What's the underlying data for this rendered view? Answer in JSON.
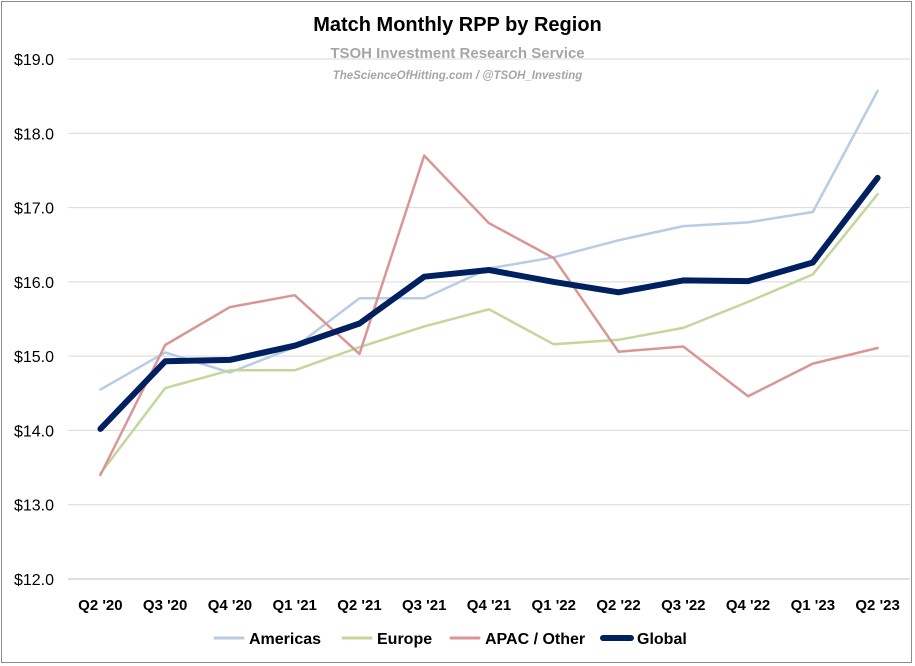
{
  "chart_data": {
    "type": "line",
    "title": "Match Monthly RPP by Region",
    "watermark": "TSOH Investment Research Service",
    "watermark_sub": "TheScienceOfHitting.com / @TSOH_Investing",
    "categories": [
      "Q2 '20",
      "Q3 '20",
      "Q4 '20",
      "Q1 '21",
      "Q2 '21",
      "Q3 '21",
      "Q4 '21",
      "Q1 '22",
      "Q2 '22",
      "Q3 '22",
      "Q4 '22",
      "Q1 '23",
      "Q2 '23"
    ],
    "ylim": [
      12.0,
      19.0
    ],
    "yticks": [
      12.0,
      13.0,
      14.0,
      15.0,
      16.0,
      17.0,
      18.0,
      19.0
    ],
    "ytick_labels": [
      "$12.0",
      "$13.0",
      "$14.0",
      "$15.0",
      "$16.0",
      "$17.0",
      "$18.0",
      "$19.0"
    ],
    "grid": true,
    "legend_position": "bottom",
    "series": [
      {
        "name": "Americas",
        "color": "#b8cce4",
        "width": 2.5,
        "values": [
          14.55,
          15.05,
          14.78,
          15.12,
          15.78,
          15.78,
          16.18,
          16.33,
          16.56,
          16.75,
          16.8,
          16.94,
          18.57
        ]
      },
      {
        "name": "Europe",
        "color": "#c4d79b",
        "width": 2.5,
        "values": [
          13.42,
          14.57,
          14.81,
          14.81,
          15.12,
          15.4,
          15.63,
          15.16,
          15.22,
          15.38,
          15.73,
          16.1,
          17.18
        ]
      },
      {
        "name": "APAC / Other",
        "color": "#d99694",
        "width": 2.5,
        "values": [
          13.4,
          15.15,
          15.66,
          15.82,
          15.03,
          17.7,
          16.79,
          16.32,
          15.06,
          15.13,
          14.46,
          14.9,
          15.11
        ]
      },
      {
        "name": "Global",
        "color": "#002060",
        "width": 6,
        "values": [
          14.02,
          14.93,
          14.95,
          15.14,
          15.44,
          16.07,
          16.16,
          16.0,
          15.86,
          16.02,
          16.01,
          16.26,
          17.4
        ]
      }
    ]
  }
}
